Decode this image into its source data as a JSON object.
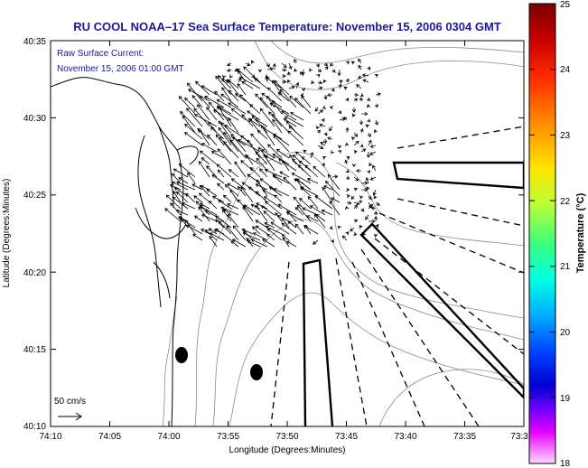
{
  "title": "RU COOL  NOAA–17  Sea Surface Temperature:  November 15, 2006 0304 GMT",
  "overlay": {
    "line1": "Raw Surface Current:",
    "line2": "November 15, 2006 01:00 GMT"
  },
  "scale_label": "50 cm/s",
  "axes": {
    "xlabel": "Longitude (Degrees:Minutes)",
    "ylabel": "Latitude (Degrees:Minutes)",
    "xticks": [
      "74:10",
      "74:05",
      "74:00",
      "73:55",
      "73:50",
      "73:45",
      "73:40",
      "73:35",
      "73:3"
    ],
    "yticks": [
      "40:35",
      "40:30",
      "40:25",
      "40:20",
      "40:15",
      "40:10"
    ]
  },
  "colorbar": {
    "label": "Temperature (°C)",
    "ticks": [
      "25",
      "24",
      "23",
      "22",
      "21",
      "20",
      "19",
      "18"
    ],
    "min": 18,
    "max": 25
  },
  "colors": {
    "title": "#1a1aa0",
    "overlay_text": "#1a1aa0",
    "axis_text": "#000000",
    "contour": "#8a8a8a",
    "coast": "#000000"
  }
}
